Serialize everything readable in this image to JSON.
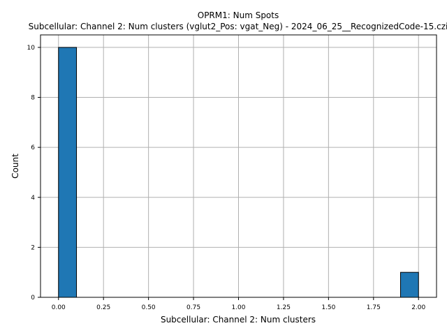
{
  "chart_data": {
    "type": "bar",
    "title": "OPRM1: Num Spots",
    "subtitle": "Subcellular: Channel 2: Num clusters (vglut2_Pos: vgat_Neg) - 2024_06_25__RecognizedCode-15.czi",
    "xlabel": "Subcellular: Channel 2: Num clusters",
    "ylabel": "Count",
    "xlim": [
      -0.1,
      2.1
    ],
    "ylim": [
      0,
      10.5
    ],
    "grid": true,
    "bar_color": "#1f77b4",
    "edge_color": "#000000",
    "xticks": [
      "0.00",
      "0.25",
      "0.50",
      "0.75",
      "1.00",
      "1.25",
      "1.50",
      "1.75",
      "2.00"
    ],
    "yticks": [
      "0",
      "2",
      "4",
      "6",
      "8",
      "10"
    ],
    "bins": [
      {
        "x0": 0.0,
        "x1": 0.1,
        "count": 10
      },
      {
        "x0": 1.9,
        "x1": 2.0,
        "count": 1
      }
    ]
  }
}
